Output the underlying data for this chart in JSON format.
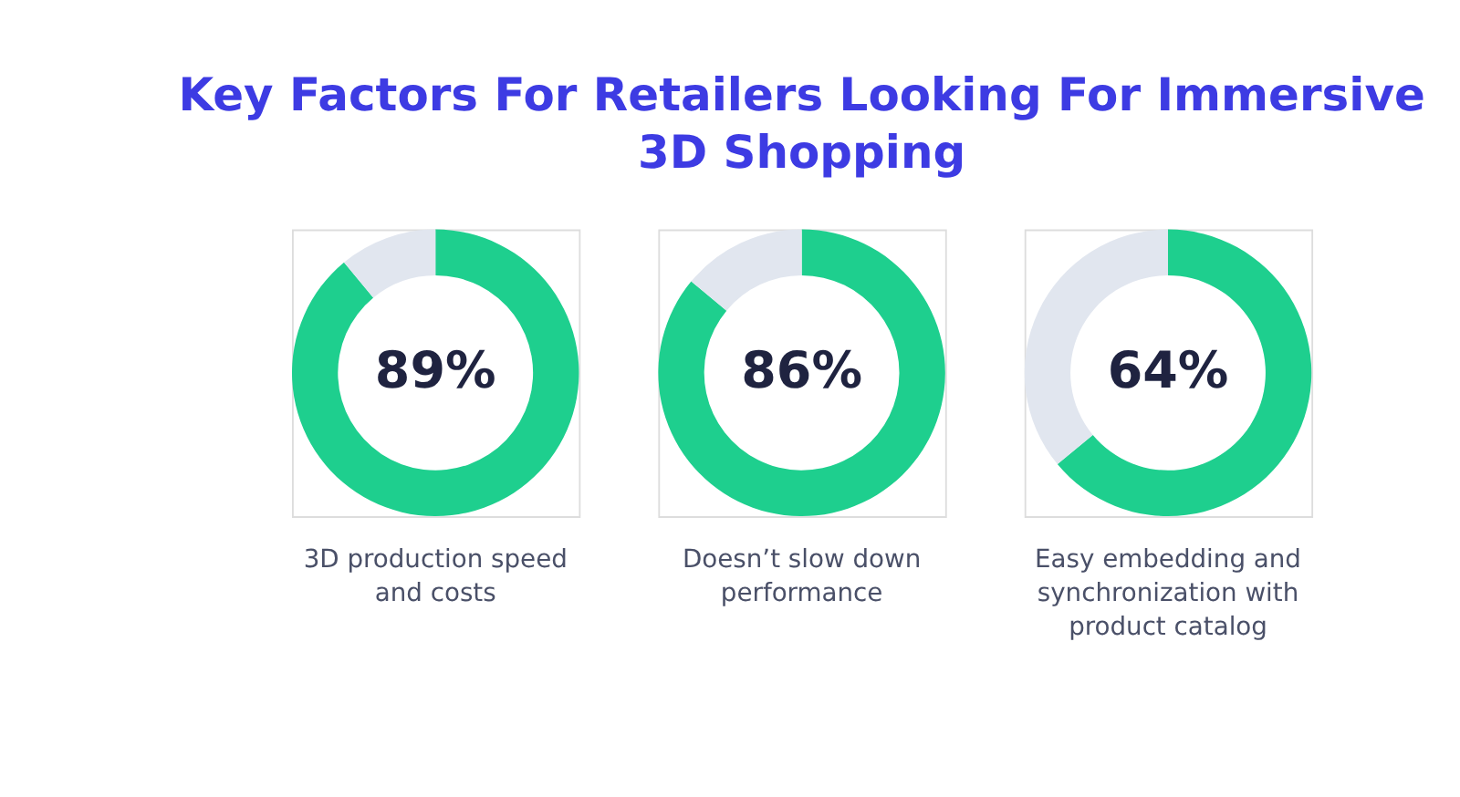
{
  "chart_data": [
    {
      "type": "donut",
      "title": "Key Factors For Retailers Looking For Immersive 3D Shopping",
      "xlabel": "3D production speed and costs",
      "categories": [
        null,
        null
      ],
      "values": [
        89,
        11
      ],
      "colors": [
        "#1ecf8e",
        "#e1e6ef"
      ],
      "value_labels": [
        "89%",
        null
      ],
      "legend": false
    },
    {
      "type": "donut",
      "xlabel": "Doesn’t slow down performance",
      "categories": [
        null,
        null
      ],
      "values": [
        86,
        14
      ],
      "colors": [
        "#1ecf8e",
        "#e1e6ef"
      ],
      "value_labels": [
        "86%",
        null
      ],
      "legend": false
    },
    {
      "type": "donut",
      "xlabel": "Easy embedding and synchronization with product catalog",
      "categories": [
        null,
        null
      ],
      "values": [
        64,
        36
      ],
      "colors": [
        "#1ecf8e",
        "#e1e6ef"
      ],
      "value_labels": [
        "64%",
        null
      ],
      "legend": false
    }
  ]
}
